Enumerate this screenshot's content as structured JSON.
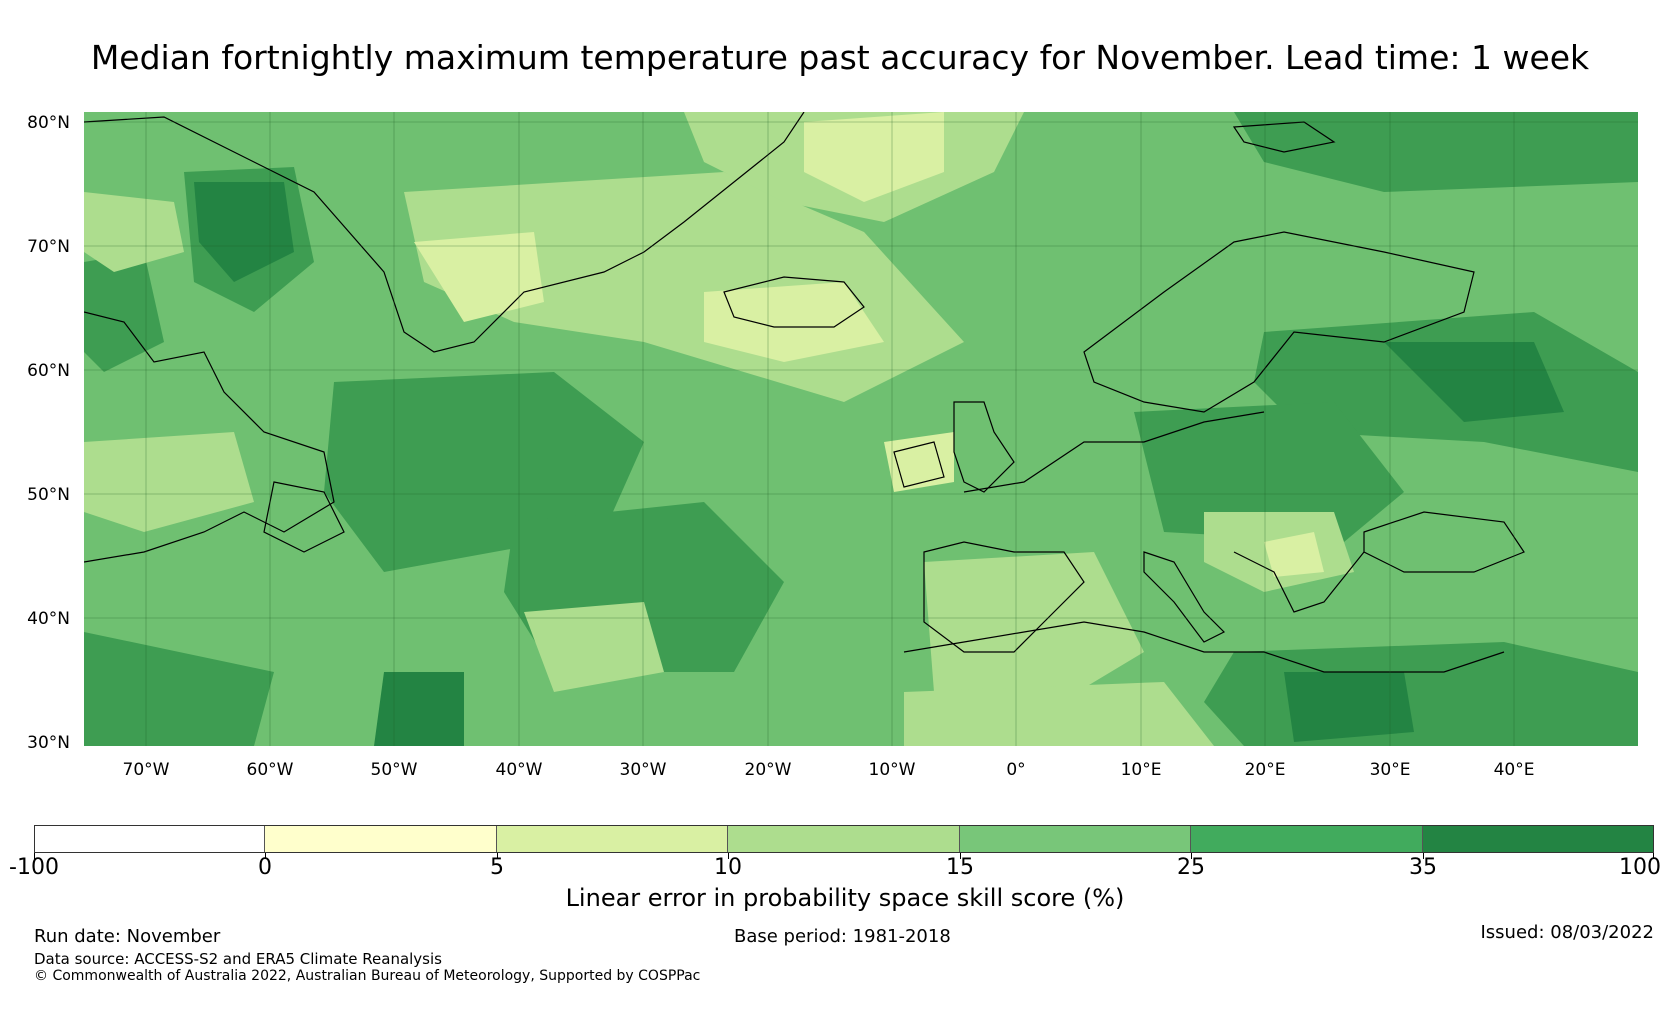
{
  "title": "Median fortnightly maximum temperature past accuracy for November. Lead time: 1 week",
  "map": {
    "lat_range": [
      30,
      80
    ],
    "lon_range": [
      -75,
      50
    ],
    "lat_ticks": [
      "80°N",
      "70°N",
      "60°N",
      "50°N",
      "40°N",
      "30°N"
    ],
    "lon_ticks": [
      "70°W",
      "60°W",
      "50°W",
      "40°W",
      "30°W",
      "20°W",
      "10°W",
      "0°",
      "10°E",
      "20°E",
      "30°E",
      "40°E"
    ],
    "ocean_base_color": "#6fc071"
  },
  "colorbar": {
    "bounds": [
      "-100",
      "0",
      "5",
      "10",
      "15",
      "25",
      "35",
      "100"
    ],
    "colors": [
      "#ffffff",
      "#ffffcc",
      "#d9f0a3",
      "#addd8e",
      "#78c679",
      "#41ab5d",
      "#238443"
    ],
    "label": "Linear error in probability space skill score (%)"
  },
  "footer": {
    "run_date": "Run date: November",
    "base_period": "Base period: 1981-2018",
    "issued": "Issued: 08/03/2022",
    "source": "Data source: ACCESS-S2 and ERA5 Climate Reanalysis",
    "copyright": "© Commonwealth of Australia 2022, Australian Bureau of Meteorology, Supported by COSPPac"
  }
}
